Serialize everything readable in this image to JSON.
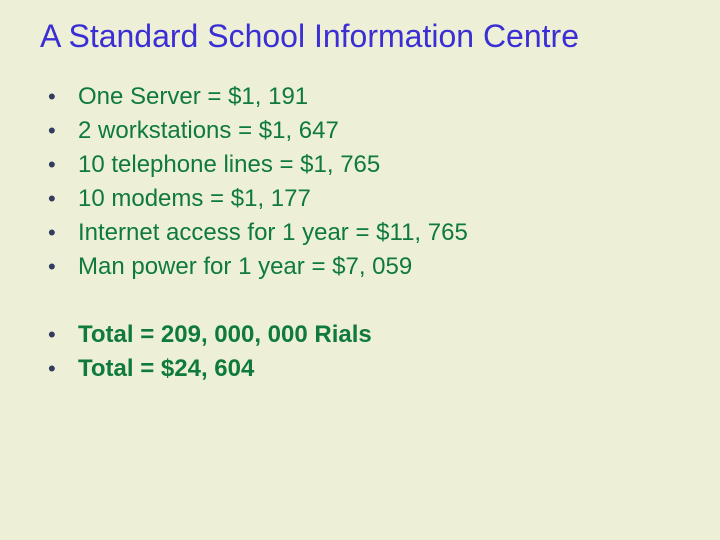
{
  "title": "A Standard School Information Centre",
  "title_color": "#3a2ed4",
  "bullet_color": "#333b5e",
  "text_color": "#0f7a3a",
  "background_color": "#edf0d7",
  "items": [
    "One Server = $1, 191",
    "2 workstations = $1, 647",
    "10 telephone lines = $1, 765",
    "10 modems = $1, 177",
    "Internet access for 1 year = $11, 765",
    "Man power for 1 year = $7, 059"
  ],
  "totals": [
    "Total  =  209, 000, 000 Rials",
    "Total  =  $24, 604"
  ]
}
